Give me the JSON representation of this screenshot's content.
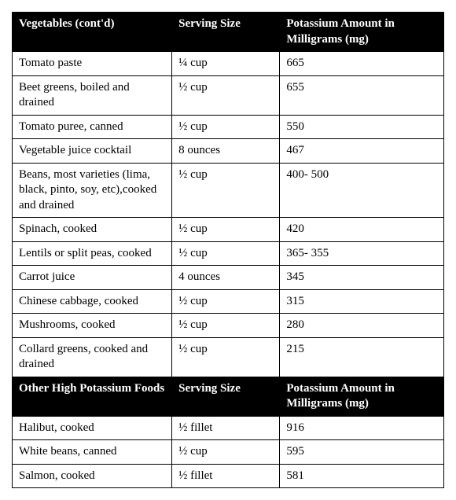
{
  "sections": [
    {
      "header": {
        "col1": "Vegetables (cont'd)",
        "col2": "Serving Size",
        "col3": "Potassium Amount in Milligrams (mg)"
      },
      "rows": [
        {
          "food": "Tomato paste",
          "serving": "¼ cup",
          "potassium": "665"
        },
        {
          "food": "Beet greens, boiled and drained",
          "serving": "½ cup",
          "potassium": "655"
        },
        {
          "food": "Tomato puree, canned",
          "serving": "½ cup",
          "potassium": "550"
        },
        {
          "food": "Vegetable juice cocktail",
          "serving": "8 ounces",
          "potassium": "467"
        },
        {
          "food": "Beans, most varieties (lima, black, pinto, soy, etc),cooked and drained",
          "serving": "½ cup",
          "potassium": "400- 500"
        },
        {
          "food": "Spinach, cooked",
          "serving": "½ cup",
          "potassium": "420"
        },
        {
          "food": "Lentils or split peas, cooked",
          "serving": "½ cup",
          "potassium": "365- 355"
        },
        {
          "food": "Carrot juice",
          "serving": "4 ounces",
          "potassium": "345"
        },
        {
          "food": "Chinese cabbage, cooked",
          "serving": "½ cup",
          "potassium": "315"
        },
        {
          "food": "Mushrooms, cooked",
          "serving": "½ cup",
          "potassium": "280"
        },
        {
          "food": "Collard greens, cooked and drained",
          "serving": "½ cup",
          "potassium": "215"
        }
      ]
    },
    {
      "header": {
        "col1": "Other High Potassium Foods",
        "col2": "Serving Size",
        "col3": "Potassium Amount in Milligrams (mg)"
      },
      "rows": [
        {
          "food": "Halibut, cooked",
          "serving": "½ fillet",
          "potassium": "916"
        },
        {
          "food": "White beans, canned",
          "serving": "½ cup",
          "potassium": "595"
        },
        {
          "food": "Salmon, cooked",
          "serving": "½ fillet",
          "potassium": "581"
        }
      ]
    }
  ]
}
